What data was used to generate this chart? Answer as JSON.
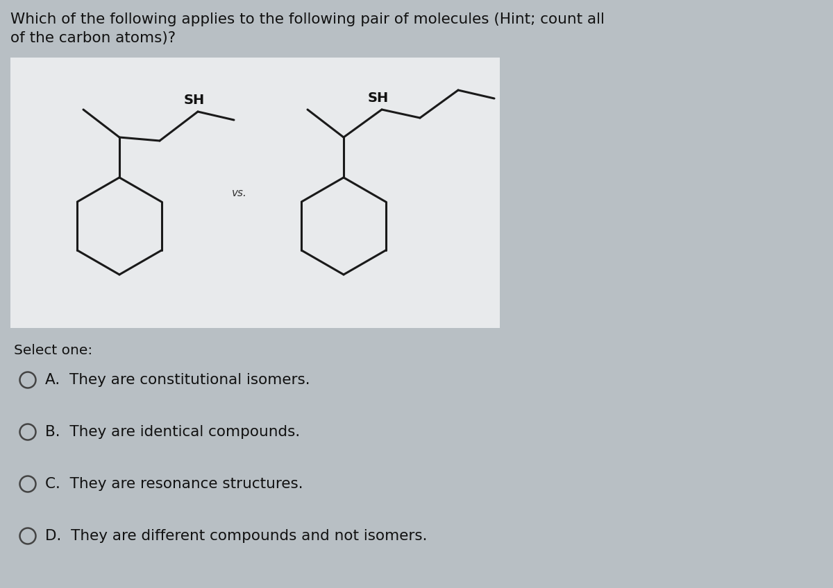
{
  "bg_color": "#b8bfc4",
  "box_bg_color": "#e8eaec",
  "title_text": "Which of the following applies to the following pair of molecules (Hint; count all\nof the carbon atoms)?",
  "title_fontsize": 15.5,
  "title_color": "#111111",
  "vs_text": "vs.",
  "select_one_text": "Select one:",
  "options": [
    "A.  They are constitutional isomers.",
    "B.  They are identical compounds.",
    "C.  They are resonance structures.",
    "D.  They are different compounds and not isomers."
  ],
  "option_fontsize": 15.5,
  "select_fontsize": 14.5,
  "circle_color": "#444444",
  "mol_line_color": "#1a1a1a",
  "sh_label_color": "#111111",
  "sh_fontsize": 14,
  "vs_fontsize": 11
}
